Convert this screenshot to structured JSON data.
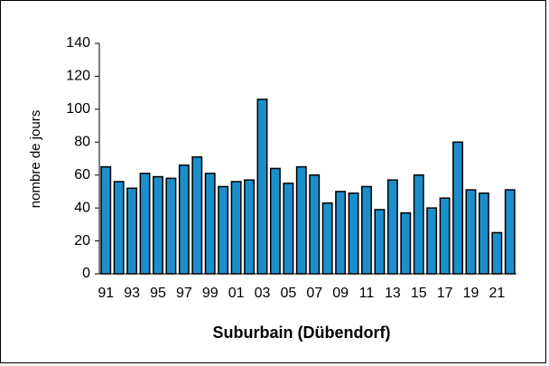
{
  "chart_data": {
    "type": "bar",
    "x_label": "Suburbain (Dübendorf)",
    "y_label": "nombre de jours",
    "categories": [
      "91",
      null,
      "93",
      null,
      "95",
      null,
      "97",
      null,
      "99",
      null,
      "01",
      null,
      "03",
      null,
      "05",
      null,
      "07",
      null,
      "09",
      null,
      "11",
      null,
      "13",
      null,
      "15",
      null,
      "17",
      null,
      "19",
      null,
      "21",
      null
    ],
    "values": [
      65,
      56,
      52,
      61,
      59,
      58,
      66,
      71,
      61,
      53,
      56,
      57,
      106,
      64,
      55,
      65,
      60,
      43,
      50,
      49,
      53,
      39,
      57,
      37,
      60,
      40,
      46,
      80,
      51,
      49,
      25,
      51
    ],
    "color": "#1b8fcb",
    "ylim": [
      0,
      140
    ],
    "yticks": [
      0,
      20,
      40,
      60,
      80,
      100,
      120,
      140
    ],
    "grid": false
  }
}
